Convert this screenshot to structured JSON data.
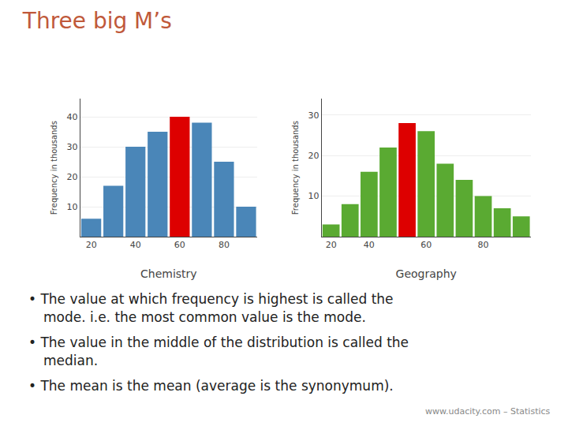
{
  "title": "Three big M’s",
  "chart_data": [
    {
      "type": "bar",
      "categories": [
        "20",
        null,
        "40",
        null,
        "60",
        null,
        "80",
        null
      ],
      "values": [
        6,
        17,
        30,
        35,
        40,
        38,
        25,
        10
      ],
      "colors": [
        "#4a86b8",
        "#4a86b8",
        "#4a86b8",
        "#4a86b8",
        "#dd0000",
        "#4a86b8",
        "#4a86b8",
        "#4a86b8"
      ],
      "xlabel": "Chemistry",
      "ylabel": "Frequency in thousands",
      "ylim": [
        0,
        46
      ],
      "yticks": [
        10,
        20,
        30,
        40
      ],
      "grid": true
    },
    {
      "type": "bar",
      "categories": [
        "20",
        null,
        "40",
        null,
        null,
        "60",
        null,
        null,
        "80",
        null,
        null
      ],
      "values": [
        3,
        8,
        16,
        22,
        28,
        26,
        18,
        14,
        10,
        7,
        5
      ],
      "colors": [
        "#5aaa32",
        "#5aaa32",
        "#5aaa32",
        "#5aaa32",
        "#dd0000",
        "#5aaa32",
        "#5aaa32",
        "#5aaa32",
        "#5aaa32",
        "#5aaa32",
        "#5aaa32"
      ],
      "xlabel": "Geography",
      "ylabel": "Frequency in thousands",
      "ylim": [
        0,
        34
      ],
      "yticks": [
        10,
        20,
        30
      ],
      "grid": true
    }
  ],
  "annotations": [
    "• The value at which frequency is highest is called the",
    "mode. i.e. the most common value is the mode.",
    "• The value in the middle of the distribution is called the",
    "median.",
    "• The mean is the mean (average is the synonymum).",
    "www.udacity.com – Statistics"
  ]
}
